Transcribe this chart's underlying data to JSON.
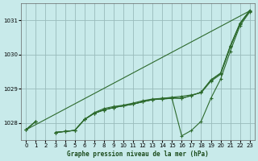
{
  "title": "Graphe pression niveau de la mer (hPa)",
  "background_color": "#c8eaea",
  "grid_color": "#99bbbb",
  "line_color": "#2d6a2d",
  "xlim": [
    -0.5,
    23.5
  ],
  "ylim": [
    1027.5,
    1031.5
  ],
  "yticks": [
    1028,
    1029,
    1030,
    1031
  ],
  "xticks": [
    0,
    1,
    2,
    3,
    4,
    5,
    6,
    7,
    8,
    9,
    10,
    11,
    12,
    13,
    14,
    15,
    16,
    17,
    18,
    19,
    20,
    21,
    22,
    23
  ],
  "series": [
    [
      1027.8,
      1028.05,
      null,
      1027.72,
      1027.75,
      1027.78,
      1028.1,
      1028.28,
      1028.38,
      1028.45,
      1028.5,
      1028.55,
      1028.62,
      1028.68,
      1028.7,
      1028.72,
      1027.62,
      1027.78,
      1028.05,
      1028.72,
      1029.28,
      1030.1,
      1030.85,
      1031.25
    ],
    [
      1027.8,
      1028.05,
      null,
      1027.72,
      1027.75,
      1027.78,
      1028.1,
      1028.28,
      1028.38,
      1028.45,
      1028.5,
      1028.55,
      1028.62,
      1028.68,
      1028.7,
      1028.72,
      1028.72,
      1028.8,
      1028.9,
      1029.25,
      1029.45,
      1030.25,
      1030.92,
      1031.28
    ],
    [
      1027.8,
      1028.05,
      null,
      1027.72,
      1027.75,
      1027.78,
      1028.1,
      1028.28,
      1028.38,
      1028.45,
      1028.5,
      1028.55,
      1028.62,
      1028.68,
      1028.72,
      1028.75,
      1028.78,
      1028.82,
      1028.88,
      1029.22,
      1029.42,
      1030.22,
      1030.9,
      1031.28
    ],
    [
      1027.8,
      1028.05,
      null,
      1027.72,
      1027.75,
      1027.78,
      1028.1,
      1028.3,
      1028.42,
      1028.48,
      1028.52,
      1028.58,
      1028.65,
      1028.7,
      1028.72,
      1028.74,
      1028.72,
      1028.8,
      1028.9,
      1029.26,
      1029.46,
      1030.26,
      1030.92,
      1031.3
    ]
  ],
  "series_straight": [
    1027.8,
    1031.28
  ]
}
